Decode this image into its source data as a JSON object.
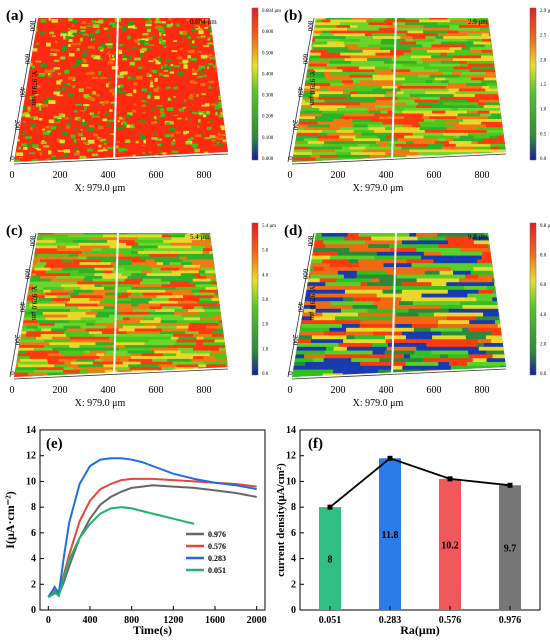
{
  "panels_3d": [
    {
      "label": "(a)",
      "max_label": "0.684 μm",
      "xlabel": "X: 979.0 μm",
      "ylabel": "Y: 979.0 μm",
      "x_ticks": [
        "0",
        "200",
        "400",
        "600",
        "800"
      ],
      "y_ticks": [
        "0",
        "200",
        "400",
        "600",
        "800"
      ],
      "cbar_ticks": [
        "0.684 μm",
        "0.600",
        "0.500",
        "0.400",
        "0.300",
        "0.200",
        "0.100",
        "0.000"
      ],
      "texture": "fine"
    },
    {
      "label": "(b)",
      "max_label": "2.9 μm",
      "xlabel": "X: 979.0 μm",
      "ylabel": "Y: 979.0 μm",
      "x_ticks": [
        "0",
        "200",
        "400",
        "600",
        "800"
      ],
      "y_ticks": [
        "0",
        "200",
        "400",
        "600",
        "800"
      ],
      "cbar_ticks": [
        "2.9 μm",
        "2.5",
        "2.0",
        "1.5",
        "1.0",
        "0.5",
        "0.0"
      ],
      "texture": "streak"
    },
    {
      "label": "(c)",
      "max_label": "5.4 μm",
      "xlabel": "X: 979.0 μm",
      "ylabel": "Y: 979.0 μm",
      "x_ticks": [
        "0",
        "200",
        "400",
        "600",
        "800"
      ],
      "y_ticks": [
        "0",
        "200",
        "400",
        "600",
        "800"
      ],
      "cbar_ticks": [
        "5.4 μm",
        "5.0",
        "4.0",
        "3.0",
        "2.0",
        "1.0",
        "0.0"
      ],
      "texture": "streak"
    },
    {
      "label": "(d)",
      "max_label": "9.8 μm",
      "xlabel": "X: 979.0 μm",
      "ylabel": "Y: 979.0 μm",
      "x_ticks": [
        "0",
        "200",
        "400",
        "600",
        "800"
      ],
      "y_ticks": [
        "0",
        "200",
        "400",
        "600",
        "800"
      ],
      "cbar_ticks": [
        "9.8 μm",
        "8.0",
        "6.0",
        "4.0",
        "2.0",
        "0.0"
      ],
      "texture": "coarse"
    }
  ],
  "chart_data": [
    {
      "type": "line",
      "label": "(e)",
      "xlabel": "Time(s)",
      "ylabel": "I(μA·cm⁻²)",
      "xlim": [
        -80,
        2080
      ],
      "ylim": [
        0,
        14
      ],
      "x_ticks": [
        0,
        400,
        800,
        1200,
        1600,
        2000
      ],
      "y_ticks": [
        0,
        2,
        4,
        6,
        8,
        10,
        12,
        14
      ],
      "legend_position": "right-middle",
      "series": [
        {
          "name": "0.976",
          "color": "#666666",
          "x": [
            0,
            40,
            60,
            100,
            150,
            200,
            300,
            400,
            500,
            600,
            700,
            800,
            900,
            1000,
            1200,
            1400,
            1600,
            1800,
            2000
          ],
          "y": [
            1.0,
            1.2,
            1.3,
            1.2,
            2.2,
            3.4,
            5.6,
            7.1,
            8.2,
            8.8,
            9.2,
            9.5,
            9.6,
            9.7,
            9.6,
            9.5,
            9.3,
            9.1,
            8.8
          ]
        },
        {
          "name": "0.576",
          "color": "#e8453c",
          "x": [
            0,
            40,
            60,
            100,
            150,
            200,
            300,
            400,
            500,
            600,
            700,
            800,
            900,
            1000,
            1200,
            1400,
            1600,
            1800,
            2000
          ],
          "y": [
            1.0,
            1.3,
            1.5,
            1.2,
            2.8,
            4.3,
            6.9,
            8.5,
            9.4,
            9.8,
            10.1,
            10.2,
            10.2,
            10.2,
            10.1,
            10.0,
            9.9,
            9.8,
            9.6
          ]
        },
        {
          "name": "0.283",
          "color": "#1f6fe0",
          "x": [
            0,
            40,
            60,
            100,
            150,
            200,
            300,
            400,
            500,
            600,
            700,
            800,
            900,
            1000,
            1200,
            1400,
            1600,
            1800,
            2000
          ],
          "y": [
            1.0,
            1.5,
            1.8,
            1.3,
            4.2,
            6.8,
            9.8,
            11.2,
            11.7,
            11.8,
            11.8,
            11.7,
            11.5,
            11.2,
            10.6,
            10.2,
            9.9,
            9.7,
            9.4
          ]
        },
        {
          "name": "0.051",
          "color": "#1fb46b",
          "x": [
            0,
            40,
            60,
            100,
            150,
            200,
            300,
            400,
            500,
            600,
            700,
            800,
            900,
            1000,
            1100,
            1200,
            1300,
            1400
          ],
          "y": [
            1.0,
            1.2,
            1.4,
            1.1,
            2.6,
            3.9,
            5.6,
            6.7,
            7.5,
            7.9,
            8.0,
            7.9,
            7.7,
            7.5,
            7.3,
            7.1,
            6.9,
            6.7
          ]
        }
      ]
    },
    {
      "type": "bar",
      "label": "(f)",
      "xlabel": "Ra(μm)",
      "ylabel": "current density(μA/cm²)",
      "categories": [
        "0.051",
        "0.283",
        "0.576",
        "0.976"
      ],
      "values": [
        8,
        11.8,
        10.2,
        9.7
      ],
      "value_labels": [
        "8",
        "11.8",
        "10.2",
        "9.7"
      ],
      "colors": [
        "#2fbf83",
        "#2a7de8",
        "#f0595c",
        "#777777"
      ],
      "ylim": [
        0,
        14
      ],
      "y_ticks": [
        0,
        2,
        4,
        6,
        8,
        10,
        12,
        14
      ],
      "line_overlay": true
    }
  ]
}
